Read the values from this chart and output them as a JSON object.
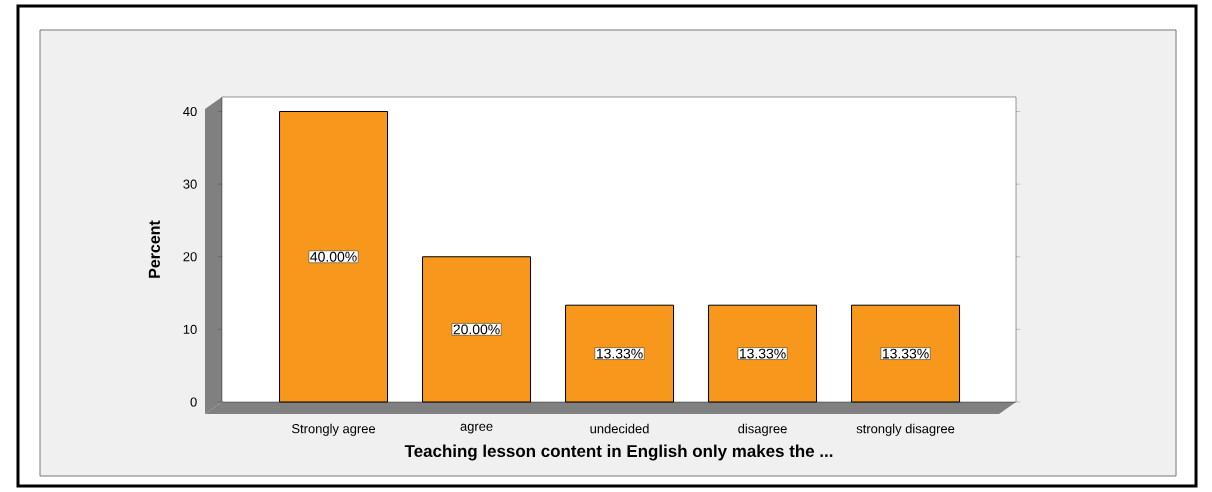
{
  "chart_data": {
    "type": "bar",
    "categories": [
      "Strongly agree",
      "agree",
      "undecided",
      "disagree",
      "strongly disagree"
    ],
    "values": [
      40,
      20,
      13.33,
      13.33,
      13.33
    ],
    "value_labels": [
      "40.00%",
      "20.00%",
      "13.33%",
      "13.33%",
      "13.33%"
    ],
    "color": "#f7981d",
    "xlabel": "Teaching lesson content in English only makes the ...",
    "ylabel": "Percent",
    "ylim": [
      0,
      42
    ],
    "yticks": [
      0,
      10,
      20,
      30,
      40
    ],
    "grid": false
  }
}
